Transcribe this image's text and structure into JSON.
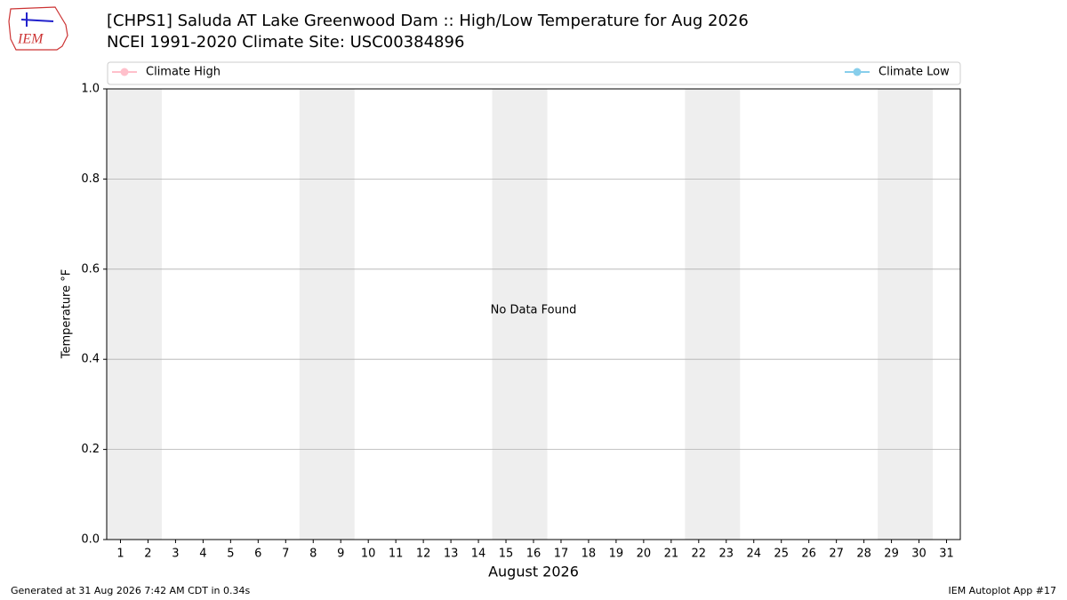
{
  "chart_data": {
    "type": "line",
    "title": "[CHPS1] Saluda  AT Lake Greenwood Dam :: High/Low Temperature for Aug 2026",
    "subtitle": "NCEI 1991-2020 Climate Site: USC00384896",
    "x_label": "August 2026",
    "y_label": "Temperature °F",
    "annotation": "No Data Found",
    "x": [],
    "series": [
      {
        "name": "Climate High",
        "color": "#ffc0cb",
        "values": []
      },
      {
        "name": "Climate Low",
        "color": "#87ceeb",
        "values": []
      }
    ],
    "xlim": [
      0.5,
      31.5
    ],
    "xticks": [
      1,
      2,
      3,
      4,
      5,
      6,
      7,
      8,
      9,
      10,
      11,
      12,
      13,
      14,
      15,
      16,
      17,
      18,
      19,
      20,
      21,
      22,
      23,
      24,
      25,
      26,
      27,
      28,
      29,
      30,
      31
    ],
    "ylim": [
      0,
      1
    ],
    "yticks": [
      {
        "value": 0,
        "label": "0.0"
      },
      0.2,
      0.4,
      0.6,
      0.8,
      {
        "value": 1,
        "label": "1.0"
      }
    ],
    "grid": "y",
    "shaded_spans": [
      [
        0.5,
        2.5
      ],
      [
        7.5,
        9.5
      ],
      [
        14.5,
        16.5
      ],
      [
        21.5,
        23.5
      ],
      [
        28.5,
        30.5
      ]
    ],
    "shade_color": "#eeeeee"
  },
  "logo_text": "IEM",
  "footer_left": "Generated at 31 Aug 2026 7:42 AM CDT in 0.34s",
  "footer_right": "IEM Autoplot App #17"
}
